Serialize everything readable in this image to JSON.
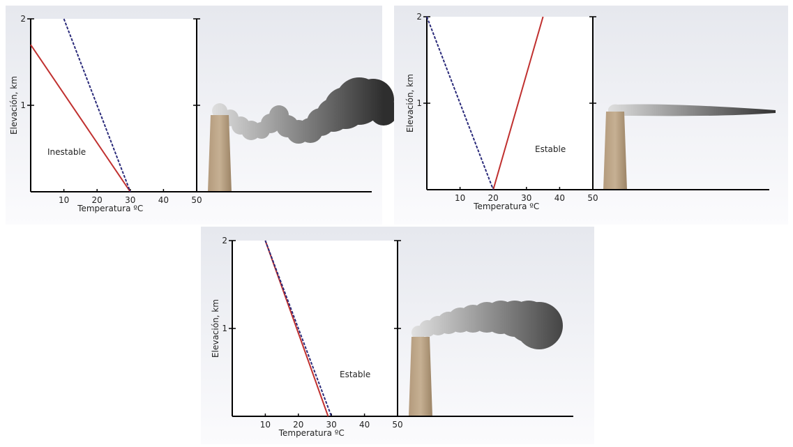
{
  "chart_data": [
    {
      "type": "line",
      "xlabel": "Temperatura ºC",
      "ylabel": "Elevación, km",
      "annotation": "Inestable",
      "xlim": [
        0,
        50
      ],
      "ylim": [
        0,
        2
      ],
      "xticks": [
        10,
        20,
        30,
        40,
        50
      ],
      "yticks": [
        1,
        2
      ],
      "series": [
        {
          "color": "#c0302f",
          "dash": false,
          "x": [
            0,
            30
          ],
          "values": [
            1.7,
            0
          ]
        },
        {
          "color": "#2a2a7a",
          "dash": true,
          "x": [
            10,
            30
          ],
          "values": [
            2,
            0
          ]
        }
      ]
    },
    {
      "type": "line",
      "xlabel": "Temperatura ºC",
      "ylabel": "Elevación, km",
      "annotation": "Estable",
      "xlim": [
        0,
        50
      ],
      "ylim": [
        0,
        2
      ],
      "xticks": [
        10,
        20,
        30,
        40,
        50
      ],
      "yticks": [
        1,
        2
      ],
      "series": [
        {
          "color": "#c0302f",
          "dash": false,
          "x": [
            20,
            35
          ],
          "values": [
            0,
            2
          ]
        },
        {
          "color": "#2a2a7a",
          "dash": true,
          "x": [
            0,
            20
          ],
          "values": [
            2,
            0
          ]
        }
      ]
    },
    {
      "type": "line",
      "xlabel": "Temperatura ºC",
      "ylabel": "Elevación, km",
      "annotation": "Estable",
      "xlim": [
        0,
        50
      ],
      "ylim": [
        0,
        2
      ],
      "xticks": [
        10,
        20,
        30,
        40,
        50
      ],
      "yticks": [
        1,
        2
      ],
      "series": [
        {
          "color": "#c0302f",
          "dash": false,
          "x": [
            10,
            29
          ],
          "values": [
            2,
            0
          ]
        },
        {
          "color": "#2a2a7a",
          "dash": true,
          "x": [
            10,
            30
          ],
          "values": [
            2,
            0
          ]
        }
      ]
    }
  ]
}
